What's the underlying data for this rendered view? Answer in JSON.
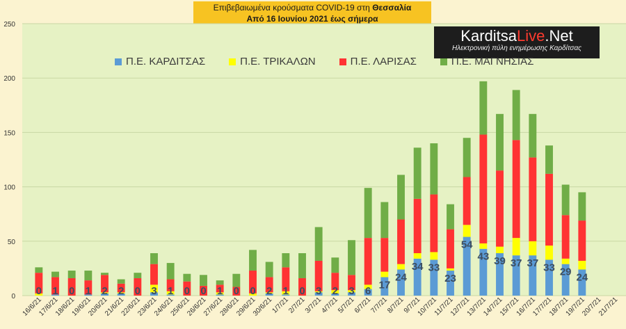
{
  "header": {
    "line1_prefix": "Επιβεβαιωμένα κρούσματα COVID-19 στη ",
    "line1_bold": "Θεσσαλία",
    "line2": "Από 16 Ιουνίου 2021 έως σήμερα"
  },
  "logo": {
    "text_main_a": "Karditsa",
    "text_main_b": "Live",
    "text_main_c": ".Net",
    "tagline": "Ηλεκτρονική πύλη ενημέρωσης Καρδίτσας"
  },
  "chart_data": {
    "type": "bar",
    "stacked": true,
    "ylim": [
      0,
      250
    ],
    "yticks": [
      0,
      50,
      100,
      150,
      200,
      250
    ],
    "grid": true,
    "legend_position": "top",
    "categories": [
      "16/6/21",
      "17/6/21",
      "18/6/21",
      "19/6/21",
      "20/6/21",
      "21/6/21",
      "22/6/21",
      "23/6/21",
      "24/6/21",
      "25/6/21",
      "26/6/21",
      "27/6/21",
      "28/6/21",
      "29/6/21",
      "30/6/21",
      "1/7/21",
      "2/7/21",
      "3/7/21",
      "4/7/21",
      "5/7/21",
      "6/7/21",
      "7/7/21",
      "8/7/21",
      "9/7/21",
      "10/7/21",
      "11/7/21",
      "12/7/21",
      "13/7/21",
      "14/7/21",
      "15/7/21",
      "16/7/21",
      "17/7/21",
      "18/7/21",
      "19/7/21",
      "20/7/21",
      "21/7/21"
    ],
    "series": [
      {
        "name": "Π.Ε. ΚΑΡΔΙΤΣΑΣ",
        "color": "#5b9bd5",
        "values": [
          0,
          1,
          0,
          1,
          2,
          2,
          0,
          3,
          1,
          0,
          0,
          1,
          0,
          0,
          2,
          1,
          0,
          3,
          2,
          3,
          6,
          17,
          24,
          34,
          33,
          23,
          54,
          43,
          39,
          37,
          37,
          33,
          29,
          24,
          null,
          null
        ]
      },
      {
        "name": "Π.Ε. ΤΡΙΚΑΛΩΝ",
        "color": "#ffff00",
        "values": [
          2,
          0,
          0,
          0,
          1,
          1,
          0,
          7,
          3,
          0,
          0,
          2,
          0,
          2,
          1,
          3,
          0,
          1,
          3,
          2,
          4,
          5,
          5,
          5,
          7,
          2,
          11,
          5,
          6,
          16,
          13,
          13,
          5,
          8,
          null,
          null
        ]
      },
      {
        "name": "Π.Ε. ΛΑΡΙΣΑΣ",
        "color": "#ff3333",
        "values": [
          19,
          16,
          16,
          13,
          16,
          8,
          16,
          19,
          11,
          13,
          9,
          7,
          8,
          21,
          14,
          22,
          16,
          28,
          16,
          14,
          43,
          31,
          41,
          50,
          53,
          36,
          44,
          100,
          70,
          90,
          77,
          66,
          40,
          37,
          null,
          null
        ]
      },
      {
        "name": "Π.Ε. ΜΑΓΝΗΣΙΑΣ",
        "color": "#70ad47",
        "values": [
          5,
          5,
          7,
          9,
          2,
          4,
          5,
          10,
          15,
          7,
          10,
          4,
          12,
          19,
          14,
          13,
          23,
          31,
          14,
          32,
          46,
          33,
          41,
          47,
          47,
          23,
          36,
          49,
          52,
          46,
          40,
          26,
          28,
          26,
          null,
          null
        ]
      }
    ],
    "value_labels_series": "Π.Ε. ΚΑΡΔΙΤΣΑΣ"
  }
}
